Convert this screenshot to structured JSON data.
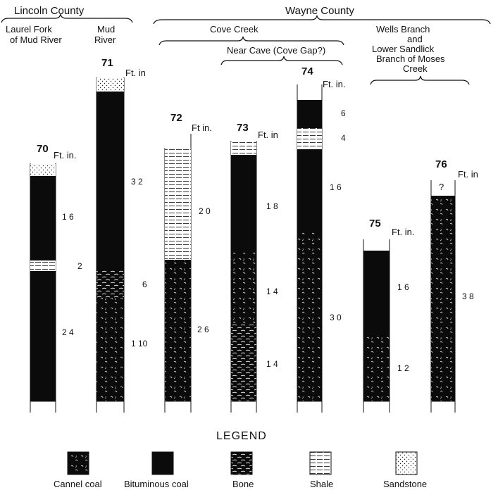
{
  "counties": {
    "lincoln": "Lincoln County",
    "wayne": "Wayne County"
  },
  "localities": {
    "laurel_fork_1": "Laurel Fork",
    "laurel_fork_2": "of Mud River",
    "mud_river_1": "Mud",
    "mud_river_2": "River",
    "cove_creek": "Cove Creek",
    "near_cave": "Near Cave (Cove Gap?)",
    "wells_1": "Wells Branch",
    "wells_2": "and",
    "wells_3": "Lower Sandlick",
    "wells_4": "Branch of Moses",
    "wells_5": "Creek"
  },
  "columns": [
    {
      "id": "70",
      "unit_label": "Ft. in.",
      "thicknesses": [
        "1 6",
        "2",
        "2 4"
      ]
    },
    {
      "id": "71",
      "unit_label": "Ft. in",
      "thicknesses": [
        "3 2",
        "6",
        "1 10"
      ]
    },
    {
      "id": "72",
      "unit_label": "Ft in.",
      "thicknesses": [
        "2 0",
        "2 6"
      ]
    },
    {
      "id": "73",
      "unit_label": "Ft. in",
      "thicknesses": [
        "1 8",
        "1 4",
        "1 4"
      ]
    },
    {
      "id": "74",
      "unit_label": "Ft. in.",
      "thicknesses": [
        "6",
        "4",
        "1 6",
        "3 0"
      ]
    },
    {
      "id": "75",
      "unit_label": "Ft. in.",
      "thicknesses": [
        "1 6",
        "1 2"
      ]
    },
    {
      "id": "76",
      "unit_label": "Ft. in",
      "top_mark": "?",
      "thicknesses": [
        "3 8"
      ]
    }
  ],
  "legend": {
    "title": "LEGEND",
    "items": [
      "Cannel coal",
      "Bituminous coal",
      "Bone",
      "Shale",
      "Sandstone"
    ]
  }
}
